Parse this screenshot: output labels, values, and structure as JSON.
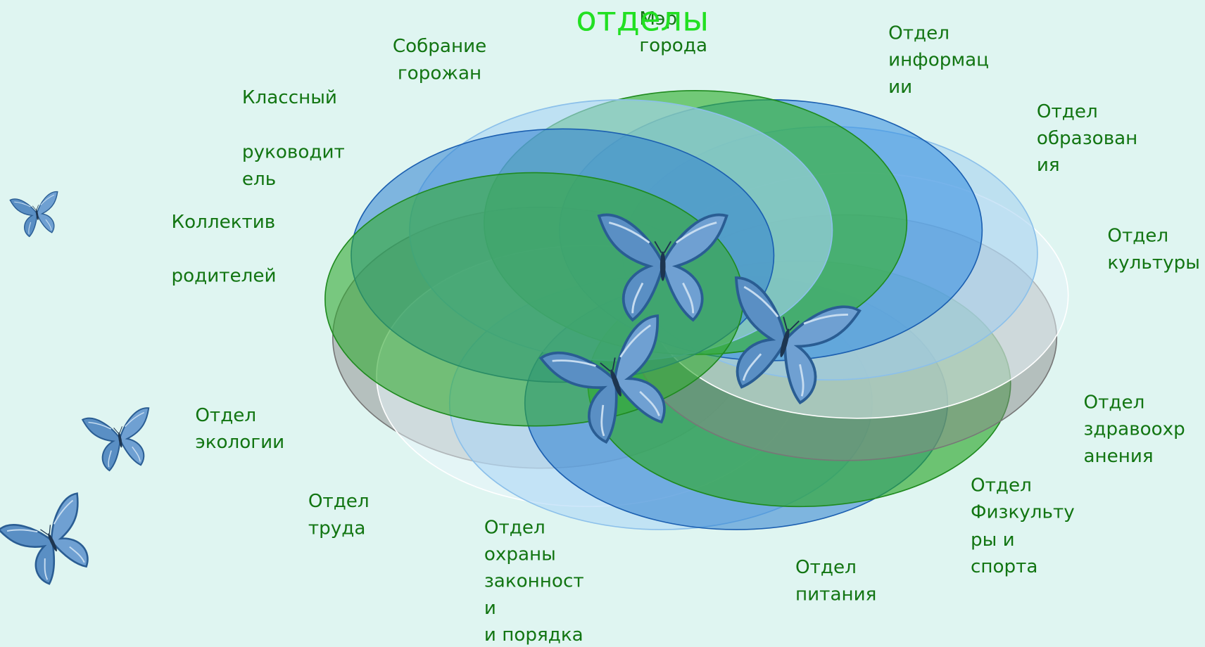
{
  "title": "отделы",
  "nodes": [
    {
      "lines": [
        "Мэр",
        "города"
      ]
    },
    {
      "lines": [
        "Собрание",
        "горожан"
      ]
    },
    {
      "lines": [
        "Классный",
        "руководит",
        "ель"
      ]
    },
    {
      "lines": [
        "Коллектив",
        "родителей"
      ]
    },
    {
      "lines": [
        "Отдел",
        "информац",
        "ии"
      ]
    },
    {
      "lines": [
        "Отдел",
        "образован",
        "ия"
      ]
    },
    {
      "lines": [
        "Отдел",
        "культуры"
      ]
    },
    {
      "lines": [
        "Отдел",
        "здравоохр",
        "анения"
      ]
    },
    {
      "lines": [
        "Отдел",
        "Физкульту",
        "ры и",
        "спорта"
      ]
    },
    {
      "lines": [
        "Отдел",
        "питания"
      ]
    },
    {
      "lines": [
        "Отдел",
        "охраны",
        "законност",
        "и",
        "и порядка"
      ]
    },
    {
      "lines": [
        "Отдел",
        "труда"
      ]
    },
    {
      "lines": [
        "Отдел",
        "экологии"
      ]
    }
  ]
}
